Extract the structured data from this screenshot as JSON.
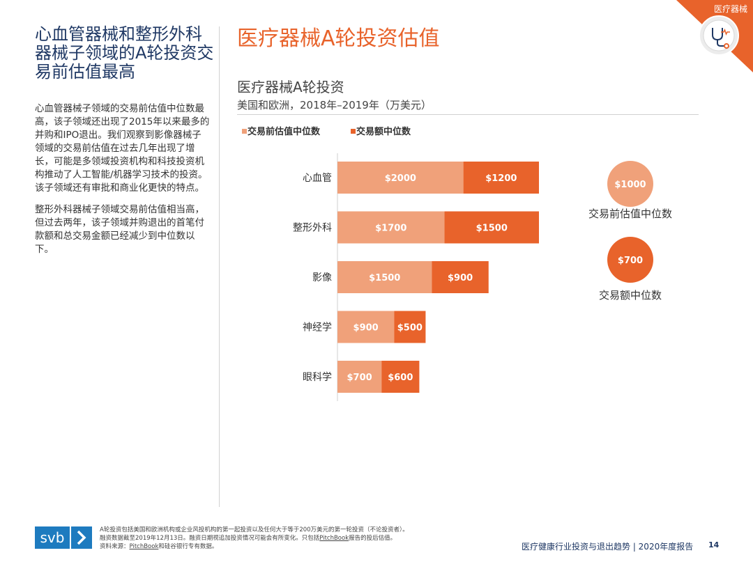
{
  "left": {
    "title": "心血管器械和整形外科器械子领域的A轮投资交易前估值最高",
    "paragraphs": [
      "心血管器械子领域的交易前估值中位数最高，该子领域还出现了2015年以来最多的并购和IPO退出。我们观察到影像器械子领域的交易前估值在过去几年出现了增长，可能是多领域投资机构和科技投资机构推动了人工智能/机器学习技术的投资。该子领域还有审批和商业化更快的特点。",
      "整形外科器械子领域交易前估值相当高，但过去两年，该子领域并购退出的首笔付款额和总交易金额已经减少到中位数以下。"
    ]
  },
  "main_title": "医疗器械A轮投资估值",
  "corner": {
    "label": "医疗器械",
    "icon": "medical-device-icon"
  },
  "colors": {
    "accent": "#e8632b",
    "pre_valuation": "#f0a17a",
    "deal_size": "#e8632b",
    "navy": "#1f3864",
    "svb_blue": "#1e7bbf"
  },
  "chart_data": {
    "type": "bar",
    "orientation": "horizontal",
    "stacked": true,
    "title": "医疗器械A轮投资",
    "subtitle": "美国和欧洲，2018年–2019年（万美元）",
    "categories": [
      "心血管",
      "整形外科",
      "影像",
      "神经学",
      "眼科学"
    ],
    "series": [
      {
        "name": "交易前估值中位数",
        "values": [
          2000,
          1700,
          1500,
          900,
          700
        ],
        "labels": [
          "$2000",
          "$1700",
          "$1500",
          "$900",
          "$700"
        ]
      },
      {
        "name": "交易额中位数",
        "values": [
          1200,
          1500,
          900,
          500,
          600
        ],
        "labels": [
          "$1200",
          "$1500",
          "$900",
          "$500",
          "$600"
        ]
      }
    ],
    "legend": [
      "交易前估值中位数",
      "交易额中位数"
    ],
    "legend_position": "top-left",
    "xlim": [
      0,
      3200
    ],
    "overall_medians": [
      {
        "label": "$1000",
        "caption": "交易前估值中位数"
      },
      {
        "label": "$700",
        "caption": "交易额中位数"
      }
    ]
  },
  "footer": {
    "logo_text": "svb",
    "note_line1": "A轮投资包括美国和欧洲机构或企业风投机构的第一起投资以及任何大于等于200万美元的第一轮投资（不论投资者）。",
    "note_line2_a": "融资数据截至2019年12月13日。融资日期视追加投资情况可能会有所变化。只包括",
    "note_line2_link": "PitchBook",
    "note_line2_b": "报告的投后估值。",
    "source_a": "资料来源：",
    "source_link": "PitchBook",
    "source_b": "和硅谷银行专有数据。",
    "report_title": "医疗健康行业投资与退出趋势 | 2020年度报告",
    "page_number": "14"
  }
}
